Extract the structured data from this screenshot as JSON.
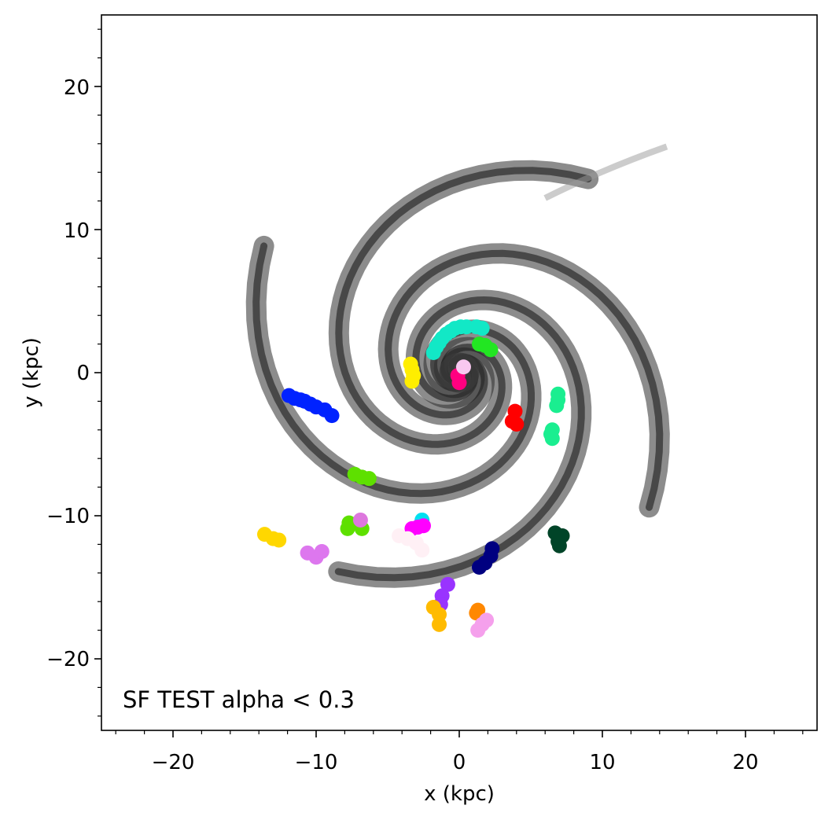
{
  "chart_data": {
    "type": "scatter",
    "xlabel": "x (kpc)",
    "ylabel": "y (kpc)",
    "xlim": [
      -25,
      25
    ],
    "ylim": [
      -25,
      25
    ],
    "xticks": [
      -20,
      -10,
      0,
      10,
      20
    ],
    "yticks": [
      20,
      10,
      0,
      -10,
      -20
    ],
    "xtick_labels": [
      "−20",
      "−10",
      "0",
      "10",
      "20"
    ],
    "ytick_labels": [
      "20",
      "10",
      "0",
      "−10",
      "−20"
    ],
    "grid": false,
    "annotation": "SF TEST alpha < 0.3",
    "background": {
      "description": "grayscale gas density of a spiral galaxy centred at (0,0) with several spiral arms reaching radius about 17 kpc",
      "color": "#000000"
    },
    "series": [
      {
        "color": "#0022ff",
        "points": [
          [
            -11.9,
            -1.6
          ],
          [
            -11.5,
            -1.8
          ],
          [
            -11.1,
            -1.9
          ],
          [
            -10.8,
            -2.0
          ],
          [
            -10.4,
            -2.2
          ],
          [
            -10.0,
            -2.4
          ],
          [
            -9.4,
            -2.6
          ],
          [
            -8.9,
            -3.0
          ]
        ]
      },
      {
        "color": "#12e8c6",
        "points": [
          [
            -1.8,
            1.4
          ],
          [
            -1.6,
            1.8
          ],
          [
            -1.4,
            2.1
          ],
          [
            -1.2,
            2.4
          ],
          [
            -0.9,
            2.7
          ],
          [
            -0.6,
            2.9
          ],
          [
            -0.3,
            3.1
          ],
          [
            0.1,
            3.2
          ],
          [
            0.5,
            3.2
          ],
          [
            1.2,
            3.2
          ],
          [
            1.6,
            3.1
          ]
        ]
      },
      {
        "color": "#22e622",
        "points": [
          [
            1.4,
            2.0
          ],
          [
            1.8,
            1.9
          ],
          [
            2.2,
            1.6
          ]
        ]
      },
      {
        "color": "#ffee00",
        "points": [
          [
            -3.4,
            0.6
          ],
          [
            -3.3,
            0.2
          ],
          [
            -3.2,
            -0.2
          ],
          [
            -3.3,
            -0.6
          ]
        ]
      },
      {
        "color": "#ff0080",
        "points": [
          [
            -0.1,
            -0.2
          ],
          [
            0.0,
            -0.7
          ]
        ]
      },
      {
        "color": "#f8c8f0",
        "points": [
          [
            0.3,
            0.4
          ]
        ]
      },
      {
        "color": "#ff0000",
        "points": [
          [
            3.9,
            -2.7
          ],
          [
            3.7,
            -3.4
          ],
          [
            4.0,
            -3.6
          ]
        ]
      },
      {
        "color": "#1aee90",
        "points": [
          [
            6.9,
            -1.5
          ],
          [
            6.9,
            -1.9
          ],
          [
            6.8,
            -2.3
          ],
          [
            6.5,
            -4.0
          ],
          [
            6.4,
            -4.3
          ],
          [
            6.5,
            -4.6
          ]
        ]
      },
      {
        "color": "#5ee000",
        "points": [
          [
            -7.3,
            -7.1
          ],
          [
            -6.8,
            -7.3
          ],
          [
            -6.3,
            -7.4
          ]
        ]
      },
      {
        "color": "#5ee000",
        "points": [
          [
            -7.7,
            -10.5
          ],
          [
            -7.8,
            -10.9
          ],
          [
            -6.8,
            -10.9
          ]
        ]
      },
      {
        "color": "#dd77dd",
        "points": [
          [
            -6.9,
            -10.3
          ]
        ]
      },
      {
        "color": "#00e0f0",
        "points": [
          [
            -2.6,
            -10.3
          ]
        ]
      },
      {
        "color": "#ff00ff",
        "points": [
          [
            -3.3,
            -10.9
          ],
          [
            -2.9,
            -10.8
          ],
          [
            -2.5,
            -10.7
          ]
        ]
      },
      {
        "color": "#fff0f5",
        "points": [
          [
            -4.2,
            -11.4
          ],
          [
            -3.6,
            -11.6
          ],
          [
            -3.0,
            -11.9
          ],
          [
            -2.6,
            -12.4
          ]
        ]
      },
      {
        "color": "#ffd700",
        "points": [
          [
            -13.6,
            -11.3
          ],
          [
            -13.0,
            -11.6
          ],
          [
            -12.6,
            -11.7
          ]
        ]
      },
      {
        "color": "#dd77ee",
        "points": [
          [
            -10.6,
            -12.6
          ],
          [
            -10.0,
            -12.9
          ],
          [
            -9.6,
            -12.5
          ]
        ]
      },
      {
        "color": "#000080",
        "points": [
          [
            2.3,
            -12.3
          ],
          [
            2.2,
            -12.8
          ],
          [
            1.8,
            -13.3
          ],
          [
            1.4,
            -13.6
          ]
        ]
      },
      {
        "color": "#004428",
        "points": [
          [
            6.7,
            -11.2
          ],
          [
            7.2,
            -11.4
          ],
          [
            6.9,
            -11.8
          ],
          [
            7.0,
            -12.1
          ]
        ]
      },
      {
        "color": "#9933ff",
        "points": [
          [
            -0.8,
            -14.8
          ],
          [
            -1.2,
            -15.6
          ],
          [
            -1.3,
            -16.2
          ]
        ]
      },
      {
        "color": "#ffbb00",
        "points": [
          [
            -1.8,
            -16.4
          ],
          [
            -1.4,
            -16.9
          ],
          [
            -1.4,
            -17.6
          ]
        ]
      },
      {
        "color": "#ff8800",
        "points": [
          [
            1.3,
            -16.6
          ],
          [
            1.2,
            -16.8
          ]
        ]
      },
      {
        "color": "#f5a0ec",
        "points": [
          [
            1.9,
            -17.3
          ],
          [
            1.6,
            -17.6
          ],
          [
            1.3,
            -18.0
          ]
        ]
      }
    ]
  }
}
